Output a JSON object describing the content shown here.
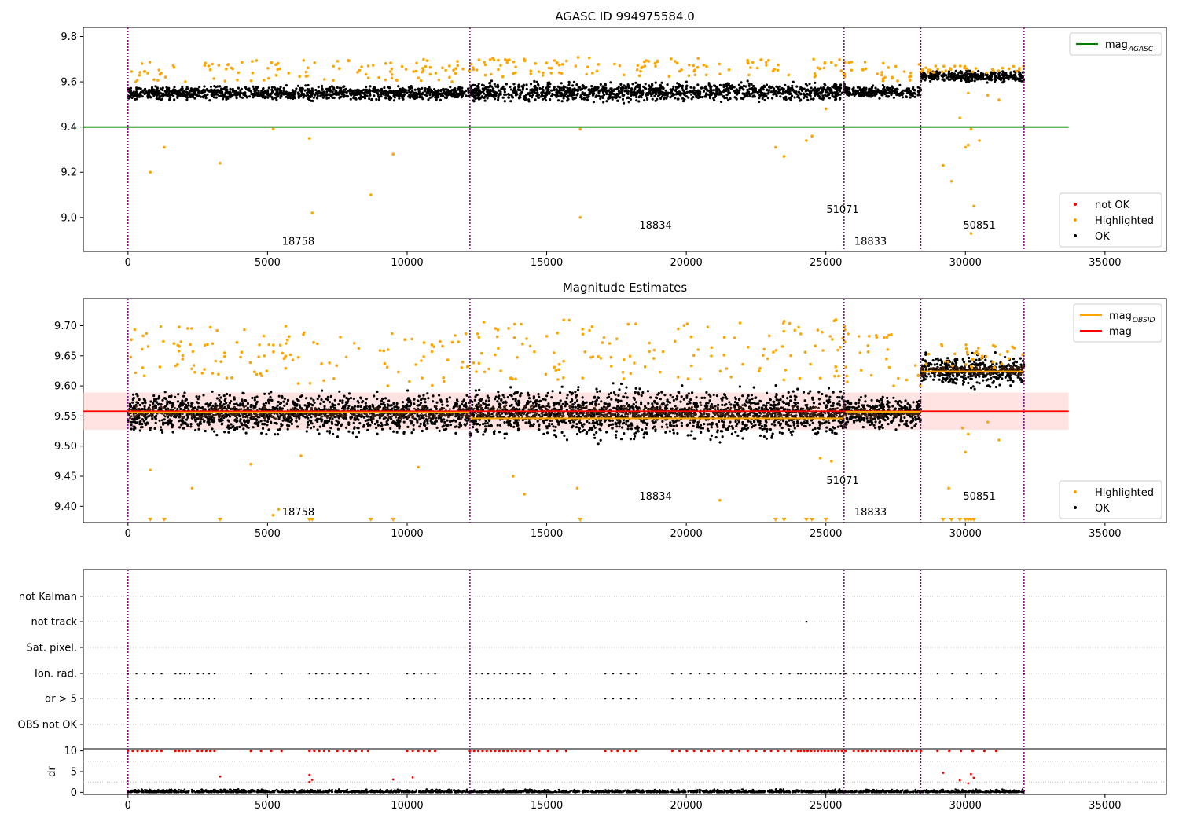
{
  "chart_data": [
    {
      "type": "scatter",
      "title": "AGASC ID 994975584.0",
      "xlim": [
        -1600,
        37200
      ],
      "ylim": [
        8.85,
        9.84
      ],
      "xticks": [
        0,
        5000,
        10000,
        15000,
        20000,
        25000,
        30000,
        35000
      ],
      "yticks": [
        "9.0",
        "9.2",
        "9.4",
        "9.6",
        "9.8"
      ],
      "legend_upper": {
        "position": "upper-right",
        "entries": [
          {
            "label": "mag",
            "sub": "AGASC",
            "color": "#008000"
          }
        ]
      },
      "legend_lower": {
        "position": "lower-right",
        "entries": [
          {
            "label": "not OK",
            "color": "#ff0000"
          },
          {
            "label": "Highlighted",
            "color": "#ffa500"
          },
          {
            "label": "OK",
            "color": "#000000"
          }
        ]
      },
      "reference_line": {
        "name": "mag_AGASC",
        "y": 9.4,
        "x_range": [
          -1600,
          33700
        ],
        "color": "#008000"
      },
      "obs_boundaries": [
        0,
        12250,
        25650,
        28400,
        32100
      ],
      "observations": [
        {
          "obsid": "18758",
          "x_range": [
            0,
            12250
          ],
          "label_x": 6100,
          "label_y": 8.88,
          "band": [
            9.51,
            9.59
          ],
          "highlight_y": [
            9.6,
            9.7
          ]
        },
        {
          "obsid": "18834",
          "x_range": [
            12250,
            25650
          ],
          "label_x": 18900,
          "label_y": 8.95,
          "band": [
            9.5,
            9.61
          ],
          "highlight_y": [
            9.62,
            9.71
          ]
        },
        {
          "obsid": "51071",
          "x_range": [
            25650,
            25700
          ],
          "label_x": 25600,
          "label_y": 9.02,
          "band": [
            9.53,
            9.6
          ],
          "highlight_y": [
            9.62,
            9.7
          ]
        },
        {
          "obsid": "18833",
          "x_range": [
            25700,
            28400
          ],
          "label_x": 26600,
          "label_y": 8.88,
          "band": [
            9.52,
            9.59
          ],
          "highlight_y": [
            9.6,
            9.69
          ]
        },
        {
          "obsid": "50851",
          "x_range": [
            28400,
            32100
          ],
          "label_x": 30500,
          "label_y": 8.95,
          "band": [
            9.59,
            9.66
          ],
          "highlight_y": [
            9.64,
            9.67
          ]
        }
      ],
      "outliers": [
        [
          800,
          9.2
        ],
        [
          1300,
          9.31
        ],
        [
          3300,
          9.24
        ],
        [
          5200,
          9.39
        ],
        [
          6500,
          9.35
        ],
        [
          6600,
          9.02
        ],
        [
          8700,
          9.1
        ],
        [
          9500,
          9.28
        ],
        [
          16200,
          9.0
        ],
        [
          16200,
          9.39
        ],
        [
          23200,
          9.31
        ],
        [
          23500,
          9.27
        ],
        [
          24300,
          9.34
        ],
        [
          24500,
          9.36
        ],
        [
          25000,
          9.48
        ],
        [
          29200,
          9.23
        ],
        [
          29500,
          9.16
        ],
        [
          29800,
          9.44
        ],
        [
          30000,
          9.31
        ],
        [
          30100,
          9.32
        ],
        [
          30200,
          9.39
        ],
        [
          30300,
          9.05
        ],
        [
          30200,
          8.93
        ],
        [
          30500,
          9.34
        ],
        [
          31200,
          9.52
        ],
        [
          30800,
          9.54
        ],
        [
          30100,
          9.55
        ]
      ]
    },
    {
      "type": "scatter",
      "title": "Magnitude Estimates",
      "xlim": [
        -1600,
        37200
      ],
      "ylim": [
        9.373,
        9.745
      ],
      "xticks": [
        0,
        5000,
        10000,
        15000,
        20000,
        25000,
        30000,
        35000
      ],
      "yticks": [
        "9.40",
        "9.45",
        "9.50",
        "9.55",
        "9.60",
        "9.65",
        "9.70"
      ],
      "legend_upper": {
        "position": "upper-right",
        "entries": [
          {
            "label": "mag",
            "sub": "OBSID",
            "color": "#ffa500"
          },
          {
            "label": "mag",
            "color": "#ff0000"
          }
        ]
      },
      "legend_lower": {
        "position": "lower-right",
        "entries": [
          {
            "label": "Highlighted",
            "color": "#ffa500"
          },
          {
            "label": "OK",
            "color": "#000000"
          }
        ]
      },
      "mag_line": {
        "y": 9.558,
        "x_range": [
          -1600,
          33700
        ],
        "color": "#ff0000"
      },
      "mag_band": {
        "y_range": [
          9.527,
          9.589
        ],
        "x_range": [
          -1600,
          33700
        ],
        "color": "#ffcccc"
      },
      "obsid_mags": [
        {
          "x_range": [
            0,
            12250
          ],
          "y": 9.556
        },
        {
          "x_range": [
            12250,
            25650
          ],
          "y": 9.546
        },
        {
          "x_range": [
            25650,
            25700
          ],
          "y": 9.55
        },
        {
          "x_range": [
            25700,
            28400
          ],
          "y": 9.557
        },
        {
          "x_range": [
            28400,
            32100
          ],
          "y": 9.624
        }
      ],
      "obs_boundaries": [
        0,
        12250,
        25650,
        28400,
        32100
      ],
      "observations": [
        {
          "obsid": "18758",
          "x_range": [
            0,
            12250
          ],
          "label_x": 6100,
          "label_y": 9.385,
          "band": [
            9.51,
            9.6
          ],
          "highlight_y": [
            9.6,
            9.7
          ]
        },
        {
          "obsid": "18834",
          "x_range": [
            12250,
            25650
          ],
          "label_x": 18900,
          "label_y": 9.411,
          "band": [
            9.5,
            9.61
          ],
          "highlight_y": [
            9.61,
            9.71
          ]
        },
        {
          "obsid": "51071",
          "x_range": [
            25650,
            25700
          ],
          "label_x": 25600,
          "label_y": 9.437,
          "band": [
            9.52,
            9.6
          ],
          "highlight_y": [
            9.62,
            9.7
          ]
        },
        {
          "obsid": "18833",
          "x_range": [
            25700,
            28400
          ],
          "label_x": 26600,
          "label_y": 9.385,
          "band": [
            9.52,
            9.59
          ],
          "highlight_y": [
            9.6,
            9.69
          ]
        },
        {
          "obsid": "50851",
          "x_range": [
            28400,
            32100
          ],
          "label_x": 30500,
          "label_y": 9.411,
          "band": [
            9.59,
            9.66
          ],
          "highlight_y": [
            9.63,
            9.67
          ]
        }
      ],
      "clipped_x": [
        800,
        1300,
        3300,
        6500,
        6600,
        8700,
        9500,
        16200,
        23200,
        23500,
        24300,
        24500,
        25000,
        29200,
        29500,
        29800,
        30000,
        30100,
        30200,
        30300
      ],
      "outliers": [
        [
          800,
          9.46
        ],
        [
          2300,
          9.43
        ],
        [
          4400,
          9.47
        ],
        [
          5400,
          9.395
        ],
        [
          5200,
          9.385
        ],
        [
          6200,
          9.484
        ],
        [
          10400,
          9.465
        ],
        [
          13800,
          9.45
        ],
        [
          14200,
          9.42
        ],
        [
          16100,
          9.43
        ],
        [
          21200,
          9.41
        ],
        [
          24800,
          9.48
        ],
        [
          25200,
          9.475
        ],
        [
          29400,
          9.43
        ],
        [
          30000,
          9.49
        ],
        [
          29900,
          9.53
        ],
        [
          30100,
          9.52
        ],
        [
          31200,
          9.51
        ],
        [
          30800,
          9.54
        ]
      ]
    },
    {
      "type": "scatter",
      "title": "",
      "xlim": [
        -1600,
        37200
      ],
      "categories": [
        "not Kalman",
        "not track",
        "Sat. pixel.",
        "Ion. rad.",
        "dr > 5",
        "OBS not OK"
      ],
      "flag_points": {
        "not Kalman": [],
        "not track": [
          24300
        ],
        "Sat. pixel.": [],
        "Ion. rad.": [
          [
            0,
            1200,
            5
          ],
          [
            1700,
            2200,
            4
          ],
          [
            2500,
            3100,
            4
          ],
          [
            4400,
            5500,
            3
          ],
          [
            6500,
            7200,
            4
          ],
          [
            7500,
            8600,
            5
          ],
          [
            10000,
            11000,
            5
          ],
          [
            12250,
            14200,
            10
          ],
          [
            14400,
            15700,
            4
          ],
          [
            17100,
            18200,
            5
          ],
          [
            19500,
            20800,
            5
          ],
          [
            21000,
            22500,
            5
          ],
          [
            22800,
            24000,
            5
          ],
          [
            24100,
            25700,
            10
          ],
          [
            26000,
            28400,
            12
          ],
          [
            29000,
            31100,
            5
          ],
          [
            32100,
            32100,
            1
          ]
        ],
        "dr > 5": [
          [
            0,
            1200,
            5
          ],
          [
            1700,
            2200,
            4
          ],
          [
            2500,
            3100,
            4
          ],
          [
            4400,
            5500,
            3
          ],
          [
            6500,
            7200,
            4
          ],
          [
            7500,
            8600,
            5
          ],
          [
            10000,
            11000,
            5
          ],
          [
            12250,
            14200,
            10
          ],
          [
            14400,
            15700,
            4
          ],
          [
            17100,
            18200,
            5
          ],
          [
            19500,
            20800,
            5
          ],
          [
            21000,
            22500,
            5
          ],
          [
            22800,
            24000,
            5
          ],
          [
            24100,
            25700,
            10
          ],
          [
            26000,
            28400,
            12
          ],
          [
            29000,
            31100,
            5
          ],
          [
            32100,
            32100,
            1
          ]
        ],
        "OBS not OK": []
      },
      "obs_boundaries": [
        0,
        12250,
        25650,
        28400,
        32100
      ]
    },
    {
      "type": "scatter",
      "ylabel": "dr",
      "xlim": [
        -1600,
        37200
      ],
      "ylim": [
        -0.5,
        10.5
      ],
      "xticks": [
        0,
        5000,
        10000,
        15000,
        20000,
        25000,
        30000,
        35000
      ],
      "yticks": [
        "0",
        "5",
        "10"
      ],
      "clipped_red_x_groups": [
        [
          0,
          1200,
          8
        ],
        [
          1700,
          2200,
          5
        ],
        [
          2500,
          3100,
          5
        ],
        [
          4400,
          5500,
          4
        ],
        [
          6500,
          7200,
          5
        ],
        [
          7500,
          8600,
          6
        ],
        [
          10000,
          11000,
          6
        ],
        [
          12250,
          14200,
          14
        ],
        [
          14400,
          15700,
          5
        ],
        [
          17100,
          18200,
          6
        ],
        [
          19500,
          20800,
          6
        ],
        [
          21000,
          22500,
          6
        ],
        [
          22800,
          24000,
          6
        ],
        [
          24100,
          25700,
          14
        ],
        [
          26000,
          28400,
          16
        ],
        [
          29000,
          31100,
          6
        ]
      ],
      "red_points": [
        [
          3300,
          3.8
        ],
        [
          6500,
          2.5
        ],
        [
          6500,
          4.2
        ],
        [
          6600,
          3.0
        ],
        [
          9500,
          3.1
        ],
        [
          10200,
          3.6
        ],
        [
          29200,
          4.7
        ],
        [
          29800,
          2.9
        ],
        [
          30200,
          4.4
        ],
        [
          30300,
          3.5
        ],
        [
          30100,
          2.2
        ]
      ],
      "ok_band": [
        0,
        0.8
      ],
      "ok_x_range": [
        0,
        32100
      ],
      "obs_boundaries": [
        0,
        12250,
        25650,
        28400,
        32100
      ]
    }
  ]
}
